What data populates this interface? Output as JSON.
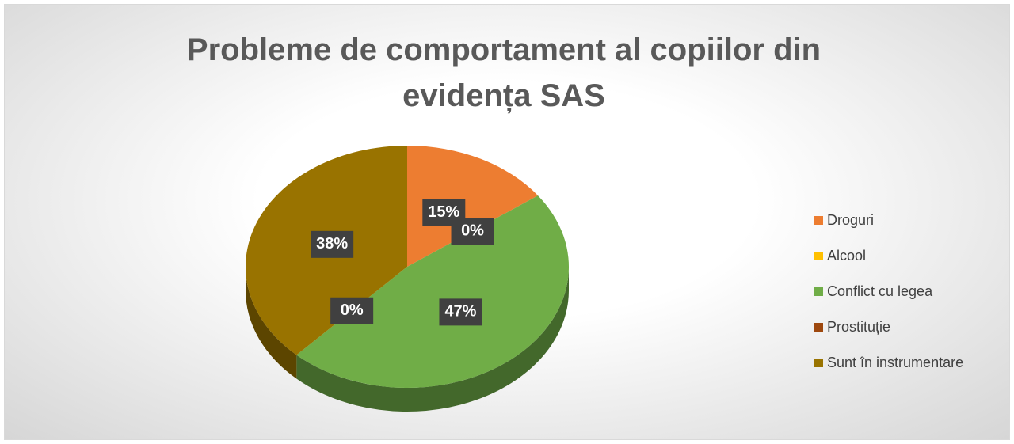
{
  "chart_data": {
    "type": "pie3d",
    "title": "Probleme de comportament al copiilor din evidența SAS",
    "categories": [
      "Droguri",
      "Alcool",
      "Conflict cu legea",
      "Prostituție",
      "Sunt în instrumentare"
    ],
    "values": [
      15,
      0,
      47,
      0,
      38
    ],
    "value_labels": [
      "15%",
      "0%",
      "47%",
      "0%",
      "38%"
    ],
    "colors": [
      "#ed7d31",
      "#ffc000",
      "#70ad47",
      "#9e480e",
      "#997300"
    ],
    "legend": "right"
  }
}
